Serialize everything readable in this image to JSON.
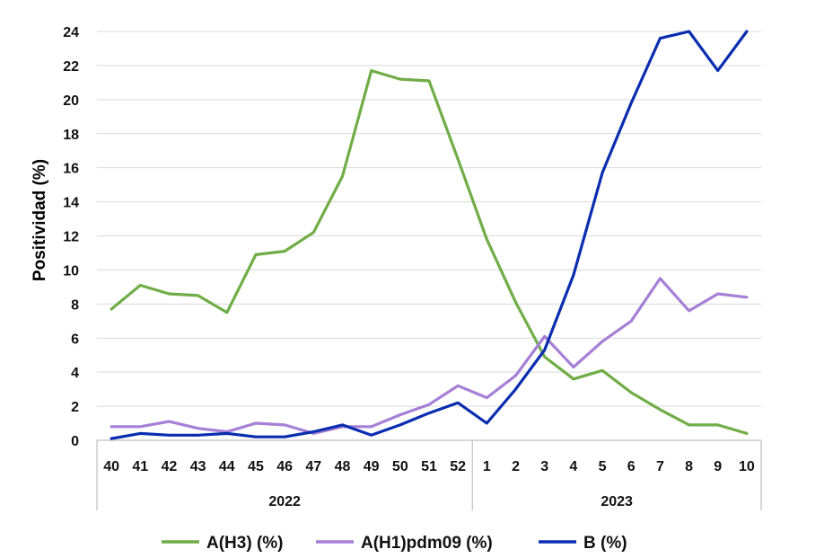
{
  "chart_data": {
    "type": "line",
    "ylabel": "Positividad (%)",
    "xlabel": "",
    "ylim": [
      0,
      24
    ],
    "yticks": [
      0,
      2,
      4,
      6,
      8,
      10,
      12,
      14,
      16,
      18,
      20,
      22,
      24
    ],
    "categories": [
      "40",
      "41",
      "42",
      "43",
      "44",
      "45",
      "46",
      "47",
      "48",
      "49",
      "50",
      "51",
      "52",
      "1",
      "2",
      "3",
      "4",
      "5",
      "6",
      "7",
      "8",
      "9",
      "10"
    ],
    "year_groups": [
      {
        "label": "2022",
        "span": 13
      },
      {
        "label": "2023",
        "span": 10
      }
    ],
    "grid": true,
    "legend_position": "bottom",
    "series": [
      {
        "name": "A(H3) (%)",
        "color": "#70ad47",
        "values": [
          7.7,
          9.1,
          8.6,
          8.5,
          7.5,
          10.9,
          11.1,
          12.2,
          15.5,
          21.7,
          21.2,
          21.1,
          16.5,
          11.8,
          8.1,
          4.9,
          3.6,
          4.1,
          2.8,
          1.8,
          0.9,
          0.9,
          0.4
        ]
      },
      {
        "name": "A(H1)pdm09 (%)",
        "color": "#a67fd6",
        "values": [
          0.8,
          0.8,
          1.1,
          0.7,
          0.5,
          1.0,
          0.9,
          0.4,
          0.8,
          0.8,
          1.5,
          2.1,
          3.2,
          2.5,
          3.8,
          6.1,
          4.3,
          5.8,
          7.0,
          9.5,
          7.6,
          8.6,
          8.4
        ]
      },
      {
        "name": "B (%)",
        "color": "#0a2db0",
        "values": [
          0.1,
          0.4,
          0.3,
          0.3,
          0.4,
          0.2,
          0.2,
          0.5,
          0.9,
          0.3,
          0.9,
          1.6,
          2.2,
          1.0,
          3.0,
          5.3,
          9.7,
          15.7,
          19.8,
          23.6,
          24.5,
          21.7,
          24.5
        ]
      }
    ]
  }
}
